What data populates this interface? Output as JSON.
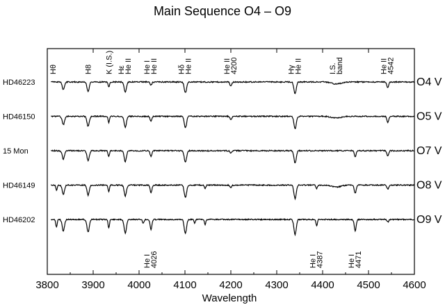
{
  "chart_data": {
    "type": "line",
    "title": "Main Sequence O4 – O9",
    "xlabel": "Wavelength",
    "ylabel": "",
    "xlim": [
      3800,
      4600
    ],
    "x_ticks": [
      3800,
      3900,
      4000,
      4100,
      4200,
      4300,
      4400,
      4500,
      4600
    ],
    "grid": false,
    "legend": "none",
    "series": [
      {
        "star": "HD46223",
        "spectral_type": "O4 V",
        "lines": [
          [
            3835,
            0.45,
            2.5
          ],
          [
            3889,
            0.55,
            2.5
          ],
          [
            3934,
            0.3,
            1.5
          ],
          [
            3970,
            0.6,
            2.5
          ],
          [
            4026,
            0.2,
            2
          ],
          [
            4101,
            0.65,
            2.5
          ],
          [
            4200,
            0.25,
            2
          ],
          [
            4340,
            0.7,
            2.5
          ],
          [
            4430,
            0.12,
            10
          ],
          [
            4542,
            0.35,
            2
          ]
        ]
      },
      {
        "star": "HD46150",
        "spectral_type": "O5 V",
        "lines": [
          [
            3835,
            0.5,
            2.5
          ],
          [
            3889,
            0.6,
            2.5
          ],
          [
            3934,
            0.4,
            1.5
          ],
          [
            3970,
            0.65,
            2.5
          ],
          [
            4026,
            0.3,
            2
          ],
          [
            4101,
            0.7,
            2.5
          ],
          [
            4200,
            0.2,
            2
          ],
          [
            4340,
            0.75,
            2.5
          ],
          [
            4430,
            0.1,
            10
          ],
          [
            4542,
            0.35,
            2
          ]
        ]
      },
      {
        "star": "15 Mon",
        "spectral_type": "O7 V",
        "lines": [
          [
            3835,
            0.5,
            2.5
          ],
          [
            3889,
            0.6,
            2.5
          ],
          [
            3934,
            0.35,
            1.5
          ],
          [
            3970,
            0.65,
            2.5
          ],
          [
            4026,
            0.35,
            2
          ],
          [
            4101,
            0.7,
            2.5
          ],
          [
            4200,
            0.15,
            2
          ],
          [
            4340,
            0.75,
            2.5
          ],
          [
            4471,
            0.35,
            2
          ],
          [
            4542,
            0.3,
            2
          ]
        ]
      },
      {
        "star": "HD46149",
        "spectral_type": "O8 V",
        "lines": [
          [
            3820,
            0.3,
            1.5
          ],
          [
            3835,
            0.55,
            2.5
          ],
          [
            3889,
            0.6,
            2.5
          ],
          [
            3934,
            0.4,
            1.5
          ],
          [
            3970,
            0.65,
            2.5
          ],
          [
            4026,
            0.45,
            2
          ],
          [
            4101,
            0.75,
            2.5
          ],
          [
            4144,
            0.2,
            1.5
          ],
          [
            4200,
            0.15,
            2
          ],
          [
            4340,
            0.8,
            2.5
          ],
          [
            4387,
            0.2,
            1.5
          ],
          [
            4430,
            0.12,
            10
          ],
          [
            4471,
            0.5,
            2
          ],
          [
            4542,
            0.25,
            2
          ]
        ]
      },
      {
        "star": "HD46202",
        "spectral_type": "O9 V",
        "lines": [
          [
            3820,
            0.45,
            1.5
          ],
          [
            3835,
            0.7,
            2.5
          ],
          [
            3889,
            0.75,
            2.5
          ],
          [
            3934,
            0.5,
            1.5
          ],
          [
            3970,
            0.8,
            2.5
          ],
          [
            4009,
            0.25,
            1.5
          ],
          [
            4026,
            0.6,
            2
          ],
          [
            4101,
            0.85,
            2.5
          ],
          [
            4121,
            0.2,
            1.5
          ],
          [
            4144,
            0.3,
            1.5
          ],
          [
            4340,
            0.9,
            2.5
          ],
          [
            4387,
            0.4,
            1.5
          ],
          [
            4471,
            0.7,
            2
          ],
          [
            4542,
            0.15,
            2
          ]
        ]
      }
    ],
    "annotations": [
      {
        "label": "Hθ",
        "x": 3798,
        "position": "top"
      },
      {
        "label": "H8",
        "x": 3889,
        "position": "top"
      },
      {
        "label": "K (I.S.)",
        "x": 3934,
        "position": "top"
      },
      {
        "label": "Hε",
        "label2": "He II",
        "x": 3970,
        "position": "top"
      },
      {
        "label": "He I",
        "label2": "He II",
        "x": 4026,
        "position": "top"
      },
      {
        "label": "Hδ",
        "label2": "He II",
        "x": 4101,
        "position": "top"
      },
      {
        "label": "He II",
        "label2": "4200",
        "x": 4200,
        "position": "top"
      },
      {
        "label": "Hγ",
        "label2": "He II",
        "x": 4340,
        "position": "top"
      },
      {
        "label": "I.S.",
        "label2": "band",
        "x": 4430,
        "position": "top"
      },
      {
        "label": "He II",
        "label2": "4542",
        "x": 4542,
        "position": "top"
      },
      {
        "label": "He I",
        "label2": "4026",
        "x": 4026,
        "position": "bottom"
      },
      {
        "label": "He I",
        "label2": "4387",
        "x": 4387,
        "position": "bottom"
      },
      {
        "label": "He I",
        "label2": "4471",
        "x": 4471,
        "position": "bottom"
      }
    ]
  }
}
